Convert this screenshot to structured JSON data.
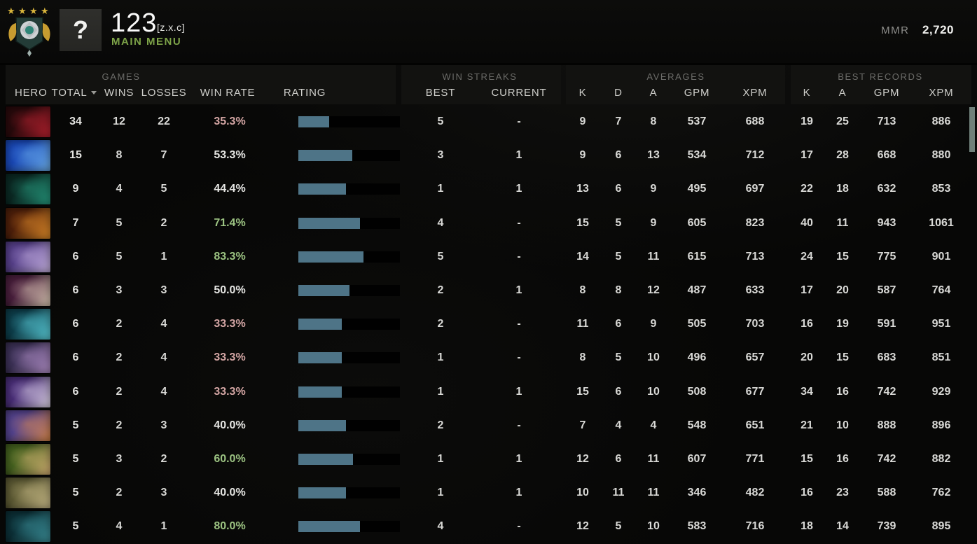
{
  "header": {
    "player_name": "123",
    "player_tag": "[z.x.c]",
    "avatar_glyph": "?",
    "main_menu_label": "MAIN MENU",
    "mmr_label": "MMR",
    "mmr_value": "2,720"
  },
  "groups": {
    "games": "GAMES",
    "win_streaks": "WIN STREAKS",
    "averages": "AVERAGES",
    "best_records": "BEST RECORDS"
  },
  "columns": {
    "hero": "HERO",
    "total": "TOTAL",
    "wins": "WINS",
    "losses": "LOSSES",
    "win_rate": "WIN RATE",
    "rating": "RATING",
    "best": "BEST",
    "current": "CURRENT",
    "k": "K",
    "d": "D",
    "a": "A",
    "gpm": "GPM",
    "xpm": "XPM",
    "rk": "K",
    "ra": "A",
    "rgpm": "GPM",
    "rxpm": "XPM"
  },
  "colors": {
    "bar_fill": "#4e7487",
    "win_low": "#d4a6a4",
    "win_mid": "#e6e6e3",
    "win_high": "#9cc382",
    "accent_green": "#7da348"
  },
  "table": {
    "rows": [
      {
        "portrait": [
          "#2a0a0c",
          "#c22231"
        ],
        "total": "34",
        "wins": "12",
        "losses": "22",
        "win_rate": "35.3%",
        "win_class": "low",
        "rating_pct": 30,
        "best": "5",
        "current": "-",
        "k": "9",
        "d": "7",
        "a": "8",
        "gpm": "537",
        "xpm": "688",
        "rk": "19",
        "ra": "25",
        "rgpm": "713",
        "rxpm": "886"
      },
      {
        "portrait": [
          "#1a49b8",
          "#6fb3ee"
        ],
        "total": "15",
        "wins": "8",
        "losses": "7",
        "win_rate": "53.3%",
        "win_class": "mid",
        "rating_pct": 53,
        "best": "3",
        "current": "1",
        "k": "9",
        "d": "6",
        "a": "13",
        "gpm": "534",
        "xpm": "712",
        "rk": "17",
        "ra": "28",
        "rgpm": "668",
        "rxpm": "880"
      },
      {
        "portrait": [
          "#0b2a24",
          "#27a184"
        ],
        "total": "9",
        "wins": "4",
        "losses": "5",
        "win_rate": "44.4%",
        "win_class": "mid",
        "rating_pct": 47,
        "best": "1",
        "current": "1",
        "k": "13",
        "d": "6",
        "a": "9",
        "gpm": "495",
        "xpm": "697",
        "rk": "22",
        "ra": "18",
        "rgpm": "632",
        "rxpm": "853"
      },
      {
        "portrait": [
          "#50200a",
          "#e8912a"
        ],
        "total": "7",
        "wins": "5",
        "losses": "2",
        "win_rate": "71.4%",
        "win_class": "high",
        "rating_pct": 61,
        "best": "4",
        "current": "-",
        "k": "15",
        "d": "5",
        "a": "9",
        "gpm": "605",
        "xpm": "823",
        "rk": "40",
        "ra": "11",
        "rgpm": "943",
        "rxpm": "1061"
      },
      {
        "portrait": [
          "#58418c",
          "#cdb9e6"
        ],
        "total": "6",
        "wins": "5",
        "losses": "1",
        "win_rate": "83.3%",
        "win_class": "high",
        "rating_pct": 64,
        "best": "5",
        "current": "-",
        "k": "14",
        "d": "5",
        "a": "11",
        "gpm": "615",
        "xpm": "713",
        "rk": "24",
        "ra": "15",
        "rgpm": "775",
        "rxpm": "901"
      },
      {
        "portrait": [
          "#4a1f3d",
          "#e3d2bb"
        ],
        "total": "6",
        "wins": "3",
        "losses": "3",
        "win_rate": "50.0%",
        "win_class": "mid",
        "rating_pct": 50,
        "best": "2",
        "current": "1",
        "k": "8",
        "d": "8",
        "a": "12",
        "gpm": "487",
        "xpm": "633",
        "rk": "17",
        "ra": "20",
        "rgpm": "587",
        "rxpm": "764"
      },
      {
        "portrait": [
          "#0d3f4c",
          "#5fd8e4"
        ],
        "total": "6",
        "wins": "2",
        "losses": "4",
        "win_rate": "33.3%",
        "win_class": "low",
        "rating_pct": 43,
        "best": "2",
        "current": "-",
        "k": "11",
        "d": "6",
        "a": "9",
        "gpm": "505",
        "xpm": "703",
        "rk": "16",
        "ra": "19",
        "rgpm": "591",
        "rxpm": "951"
      },
      {
        "portrait": [
          "#3d3258",
          "#b793cc"
        ],
        "total": "6",
        "wins": "2",
        "losses": "4",
        "win_rate": "33.3%",
        "win_class": "low",
        "rating_pct": 43,
        "best": "1",
        "current": "-",
        "k": "8",
        "d": "5",
        "a": "10",
        "gpm": "496",
        "xpm": "657",
        "rk": "20",
        "ra": "15",
        "rgpm": "683",
        "rxpm": "851"
      },
      {
        "portrait": [
          "#4b2f7a",
          "#e6ddee"
        ],
        "total": "6",
        "wins": "2",
        "losses": "4",
        "win_rate": "33.3%",
        "win_class": "low",
        "rating_pct": 43,
        "best": "1",
        "current": "1",
        "k": "15",
        "d": "6",
        "a": "10",
        "gpm": "508",
        "xpm": "677",
        "rk": "34",
        "ra": "16",
        "rgpm": "742",
        "rxpm": "929"
      },
      {
        "portrait": [
          "#55448f",
          "#e08b4a"
        ],
        "total": "5",
        "wins": "2",
        "losses": "3",
        "win_rate": "40.0%",
        "win_class": "mid",
        "rating_pct": 47,
        "best": "2",
        "current": "-",
        "k": "7",
        "d": "4",
        "a": "4",
        "gpm": "548",
        "xpm": "651",
        "rk": "21",
        "ra": "10",
        "rgpm": "888",
        "rxpm": "896"
      },
      {
        "portrait": [
          "#45621f",
          "#e0b879"
        ],
        "total": "5",
        "wins": "3",
        "losses": "2",
        "win_rate": "60.0%",
        "win_class": "high",
        "rating_pct": 54,
        "best": "1",
        "current": "1",
        "k": "12",
        "d": "6",
        "a": "11",
        "gpm": "607",
        "xpm": "771",
        "rk": "15",
        "ra": "16",
        "rgpm": "742",
        "rxpm": "882"
      },
      {
        "portrait": [
          "#5f5c35",
          "#cfc08c"
        ],
        "total": "5",
        "wins": "2",
        "losses": "3",
        "win_rate": "40.0%",
        "win_class": "mid",
        "rating_pct": 47,
        "best": "1",
        "current": "1",
        "k": "10",
        "d": "11",
        "a": "11",
        "gpm": "346",
        "xpm": "482",
        "rk": "16",
        "ra": "23",
        "rgpm": "588",
        "rxpm": "762"
      },
      {
        "portrait": [
          "#0c3138",
          "#3e96a0"
        ],
        "total": "5",
        "wins": "4",
        "losses": "1",
        "win_rate": "80.0%",
        "win_class": "high",
        "rating_pct": 61,
        "best": "4",
        "current": "-",
        "k": "12",
        "d": "5",
        "a": "10",
        "gpm": "583",
        "xpm": "716",
        "rk": "18",
        "ra": "14",
        "rgpm": "739",
        "rxpm": "895"
      }
    ]
  }
}
